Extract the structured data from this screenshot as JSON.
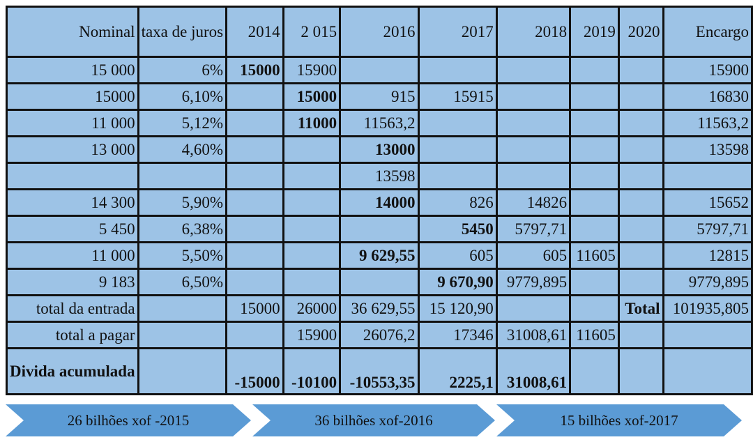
{
  "header": [
    "Nominal",
    "taxa de juros",
    "2014",
    "2 015",
    "2016",
    "2017",
    "2018",
    "2019",
    "2020",
    "Encargo"
  ],
  "loans": [
    [
      "15 000",
      "6%",
      "15000",
      "15900",
      "",
      "",
      "",
      "",
      "",
      "15900"
    ],
    [
      "15000",
      "6,10%",
      "",
      "15000",
      "915",
      "15915",
      "",
      "",
      "",
      "16830"
    ],
    [
      "11 000",
      "5,12%",
      "",
      "11000",
      "11563,2",
      "",
      "",
      "",
      "",
      "11563,2"
    ],
    [
      "13 000",
      "4,60%",
      "",
      "",
      "13000",
      "",
      "",
      "",
      "",
      "13598"
    ],
    [
      "",
      "",
      "",
      "",
      "13598",
      "",
      "",
      "",
      "",
      ""
    ],
    [
      "14 300",
      "5,90%",
      "",
      "",
      "14000",
      "826",
      "14826",
      "",
      "",
      "15652"
    ],
    [
      "5 450",
      "6,38%",
      "",
      "",
      "",
      "5450",
      "5797,71",
      "",
      "",
      "5797,71"
    ],
    [
      "11 000",
      "5,50%",
      "",
      "",
      "9 629,55",
      "605",
      "605",
      "11605",
      "",
      "12815"
    ],
    [
      "9 183",
      "6,50%",
      "",
      "",
      "",
      "9 670,90",
      "9779,895",
      "",
      "",
      "9779,895"
    ]
  ],
  "totals": {
    "entrada": [
      "total da entrada",
      "",
      "15000",
      "26000",
      "36 629,55",
      "15 120,90",
      "",
      "",
      "Total",
      "101935,805"
    ],
    "pagar": [
      "total a pagar",
      "",
      "",
      "15900",
      "26076,2",
      "17346",
      "31008,61",
      "11605",
      "",
      ""
    ],
    "divida": [
      "Divida acumulada",
      "",
      "-15000",
      "-10100",
      "-10553,35",
      "2225,1",
      "31008,61",
      "",
      "",
      ""
    ]
  },
  "arrows": [
    "26 bilhões xof -2015",
    "36 bilhões xof-2016",
    "15 bilhões xof-2017"
  ],
  "colors": {
    "header": "#00b0f0",
    "cell": "#9dc3e6",
    "highlight_yellow": "#ffff00",
    "highlight_green": "#70ad47",
    "highlight_text": "#e00000",
    "total_orange": "#ffc000",
    "debt_red": "#ff0000",
    "arrow": "#5b9bd5"
  }
}
